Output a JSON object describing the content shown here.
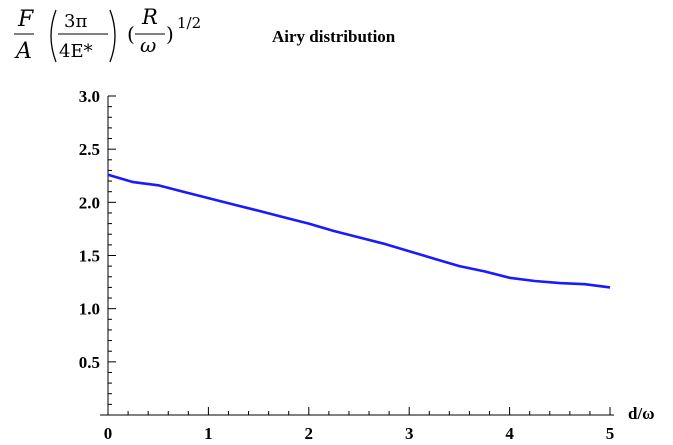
{
  "chart_data": {
    "type": "line",
    "title": "Airy distribution",
    "xlabel": "d/ω",
    "ylabel_formula": {
      "F": "F",
      "A": "A",
      "num1": "3π",
      "den1": "4E*",
      "num2": "R",
      "den2": "ω",
      "exponent": "1/2"
    },
    "xlim": [
      0,
      5
    ],
    "ylim": [
      0,
      3
    ],
    "x_ticks": [
      "0",
      "1",
      "2",
      "3",
      "4",
      "5"
    ],
    "y_ticks": [
      "0.5",
      "1.0",
      "1.5",
      "2.0",
      "2.5",
      "3.0"
    ],
    "line_color": "#1a1aff",
    "series": [
      {
        "x": [
          0,
          0.25,
          0.5,
          0.75,
          1.0,
          1.25,
          1.5,
          1.75,
          2.0,
          2.25,
          2.5,
          2.75,
          3.0,
          3.25,
          3.5,
          3.75,
          4.0,
          4.25,
          4.5,
          4.75,
          5.0
        ],
        "y": [
          2.26,
          2.19,
          2.16,
          2.1,
          2.04,
          1.98,
          1.92,
          1.86,
          1.8,
          1.73,
          1.67,
          1.61,
          1.54,
          1.47,
          1.4,
          1.35,
          1.29,
          1.26,
          1.24,
          1.23,
          1.2
        ]
      }
    ]
  }
}
